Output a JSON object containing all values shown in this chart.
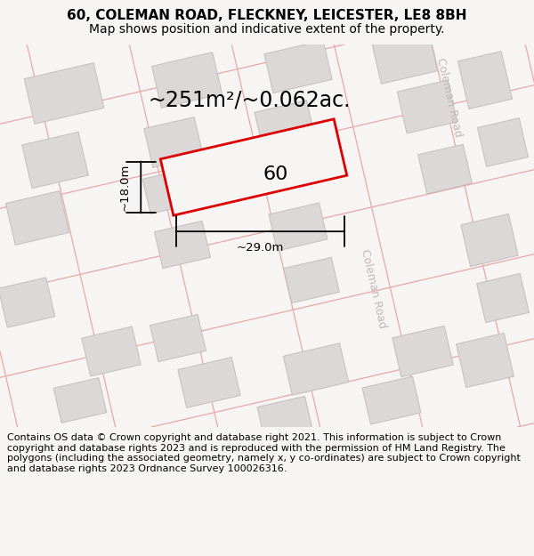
{
  "title": "60, COLEMAN ROAD, FLECKNEY, LEICESTER, LE8 8BH",
  "subtitle": "Map shows position and indicative extent of the property.",
  "footer": "Contains OS data © Crown copyright and database right 2021. This information is subject to Crown copyright and database rights 2023 and is reproduced with the permission of HM Land Registry. The polygons (including the associated geometry, namely x, y co-ordinates) are subject to Crown copyright and database rights 2023 Ordnance Survey 100026316.",
  "area_label": "~251m²/~0.062ac.",
  "width_label": "~29.0m",
  "height_label": "~18.0m",
  "property_number": "60",
  "bg_color": "#f7f4f4",
  "map_bg": "#f7f4f4",
  "building_color": "#ddd8d8",
  "building_edge": "#c4bebe",
  "road_line_color": "#e8a8a8",
  "highlight_color": "#dd0000",
  "highlight_fill": "#f7f4f4",
  "road_label_color": "#c0b8b8",
  "title_fontsize": 11,
  "subtitle_fontsize": 10,
  "footer_fontsize": 8.0,
  "annotation_fontsize": 17
}
